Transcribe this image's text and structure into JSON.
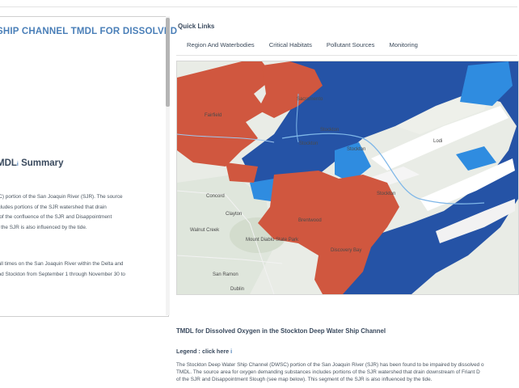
{
  "left": {
    "title": "SHIP CHANNEL TMDL FOR DISSOLVED",
    "summary_title": "MDL",
    "summary_info": "i",
    "summary_word": " Summary",
    "para1": [
      "SC) portion of the San Joaquin River (SJR). The source",
      "ncludes portions of the SJR watershed that drain",
      "n of the confluence of the SJR and Disappointment",
      "of the SJR is also influenced by the tide."
    ],
    "para2": [
      "t all times on the San Joaquin River within the Delta and",
      "and Stockton from September 1 through November 30 to"
    ]
  },
  "quick_links": {
    "title": "Quick Links",
    "tabs": [
      "Region And Waterbodies",
      "Critical Habitats",
      "Pollutant Sources",
      "Monitoring"
    ]
  },
  "map": {
    "labels": [
      "Sacramento",
      "Fairfield",
      "Stockton",
      "Stockton",
      "Stockton",
      "Stockton",
      "Lodi",
      "Concord",
      "Clayton",
      "Walnut Creek",
      "Mount Diablo State Park",
      "Brentwood",
      "Discovery Bay",
      "San Ramon",
      "Dublin"
    ],
    "colors": {
      "waterbody": "#2553a6",
      "water_light": "#2f8ce0",
      "impaired": "#d0573f",
      "land": "#e9ece6"
    }
  },
  "doc": {
    "title": "TMDL for Dissolved Oxygen in the Stockton Deep Water Ship Channel",
    "legend_label": "Legend : ",
    "legend_link": "click here",
    "legend_info": "i",
    "body": [
      "The Stockton Deep Water Ship Channel (DWSC) portion of the San Joaquin River (SJR) has been found to be impaired by dissolved o",
      "TMDL. The source area for oxygen demanding substances includes portions of the SJR watershed that drain downstream of Friant D",
      "of the SJR and Disappointment Slough (see map below). This segment of the SJR is also influenced by the tide."
    ]
  }
}
